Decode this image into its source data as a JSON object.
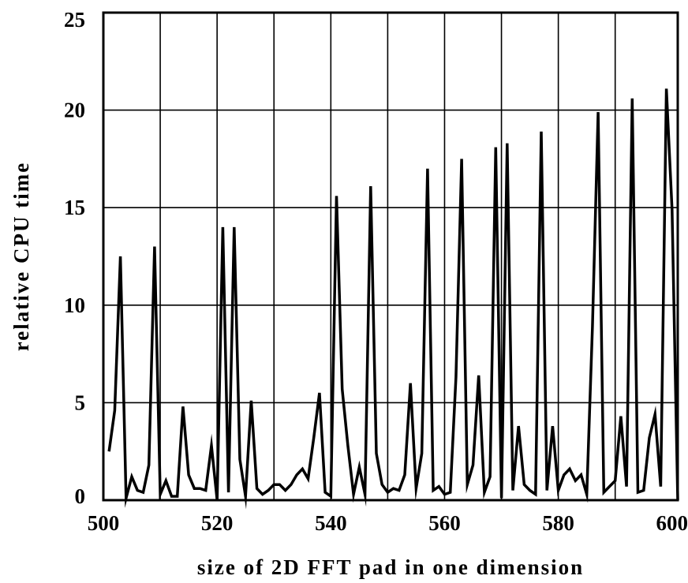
{
  "chart_data": {
    "type": "line",
    "title": "",
    "xlabel": "size of 2D FFT pad in one dimension",
    "ylabel": "relative CPU time",
    "xlim": [
      500,
      601
    ],
    "ylim": [
      0,
      25
    ],
    "xticks": [
      500,
      520,
      540,
      560,
      580,
      600
    ],
    "yticks": [
      0,
      5,
      10,
      15,
      20,
      25
    ],
    "x_tick_labels": [
      "500",
      "520",
      "540",
      "560",
      "580",
      "600"
    ],
    "y_tick_labels": [
      "0",
      "5",
      "10",
      "15",
      "20",
      "25"
    ],
    "x_gridlines": [
      510,
      520,
      530,
      540,
      550,
      560,
      570,
      580,
      590
    ],
    "y_gridlines": [
      5,
      10,
      15,
      20
    ],
    "grid": true,
    "legend": "none",
    "line_color": "#000000",
    "series": [
      {
        "x": [
          501,
          502,
          503,
          504,
          505,
          506,
          507,
          508,
          509,
          510,
          511,
          512,
          513,
          514,
          515,
          516,
          517,
          518,
          519,
          520,
          521,
          522,
          523,
          524,
          525,
          526,
          527,
          528,
          529,
          530,
          531,
          532,
          533,
          534,
          535,
          536,
          537,
          538,
          539,
          540,
          541,
          542,
          543,
          544,
          545,
          546,
          547,
          548,
          549,
          550,
          551,
          552,
          553,
          554,
          555,
          556,
          557,
          558,
          559,
          560,
          561,
          562,
          563,
          564,
          565,
          566,
          567,
          568,
          569,
          570,
          571,
          572,
          573,
          574,
          575,
          576,
          577,
          578,
          579,
          580,
          581,
          582,
          583,
          584,
          585,
          586,
          587,
          588,
          589,
          590,
          591,
          592,
          593,
          594,
          595,
          596,
          597,
          598,
          599,
          600,
          601
        ],
        "values": [
          2.5,
          4.6,
          12.5,
          0.1,
          1.2,
          0.5,
          0.4,
          1.8,
          13.0,
          0.3,
          1.0,
          0.2,
          0.2,
          4.8,
          1.3,
          0.6,
          0.6,
          0.5,
          2.8,
          0.0,
          14.0,
          0.4,
          14.0,
          2.1,
          0.2,
          5.1,
          0.6,
          0.3,
          0.5,
          0.8,
          0.8,
          0.5,
          0.8,
          1.3,
          1.6,
          1.1,
          3.2,
          5.5,
          0.4,
          0.2,
          15.6,
          5.7,
          2.8,
          0.3,
          1.7,
          0.3,
          16.1,
          2.4,
          0.8,
          0.4,
          0.6,
          0.5,
          1.3,
          6.0,
          0.6,
          2.4,
          17.0,
          0.5,
          0.7,
          0.3,
          0.4,
          6.3,
          17.5,
          0.8,
          1.8,
          6.4,
          0.4,
          1.2,
          18.1,
          0.1,
          18.3,
          0.5,
          3.8,
          0.8,
          0.5,
          0.3,
          18.9,
          0.5,
          3.8,
          0.5,
          1.3,
          1.6,
          1.0,
          1.3,
          0.3,
          8.9,
          19.9,
          0.4,
          0.7,
          1.0,
          4.3,
          0.7,
          20.6,
          0.4,
          0.5,
          3.2,
          4.4,
          0.7,
          21.1,
          14.9,
          0.0
        ]
      }
    ]
  }
}
